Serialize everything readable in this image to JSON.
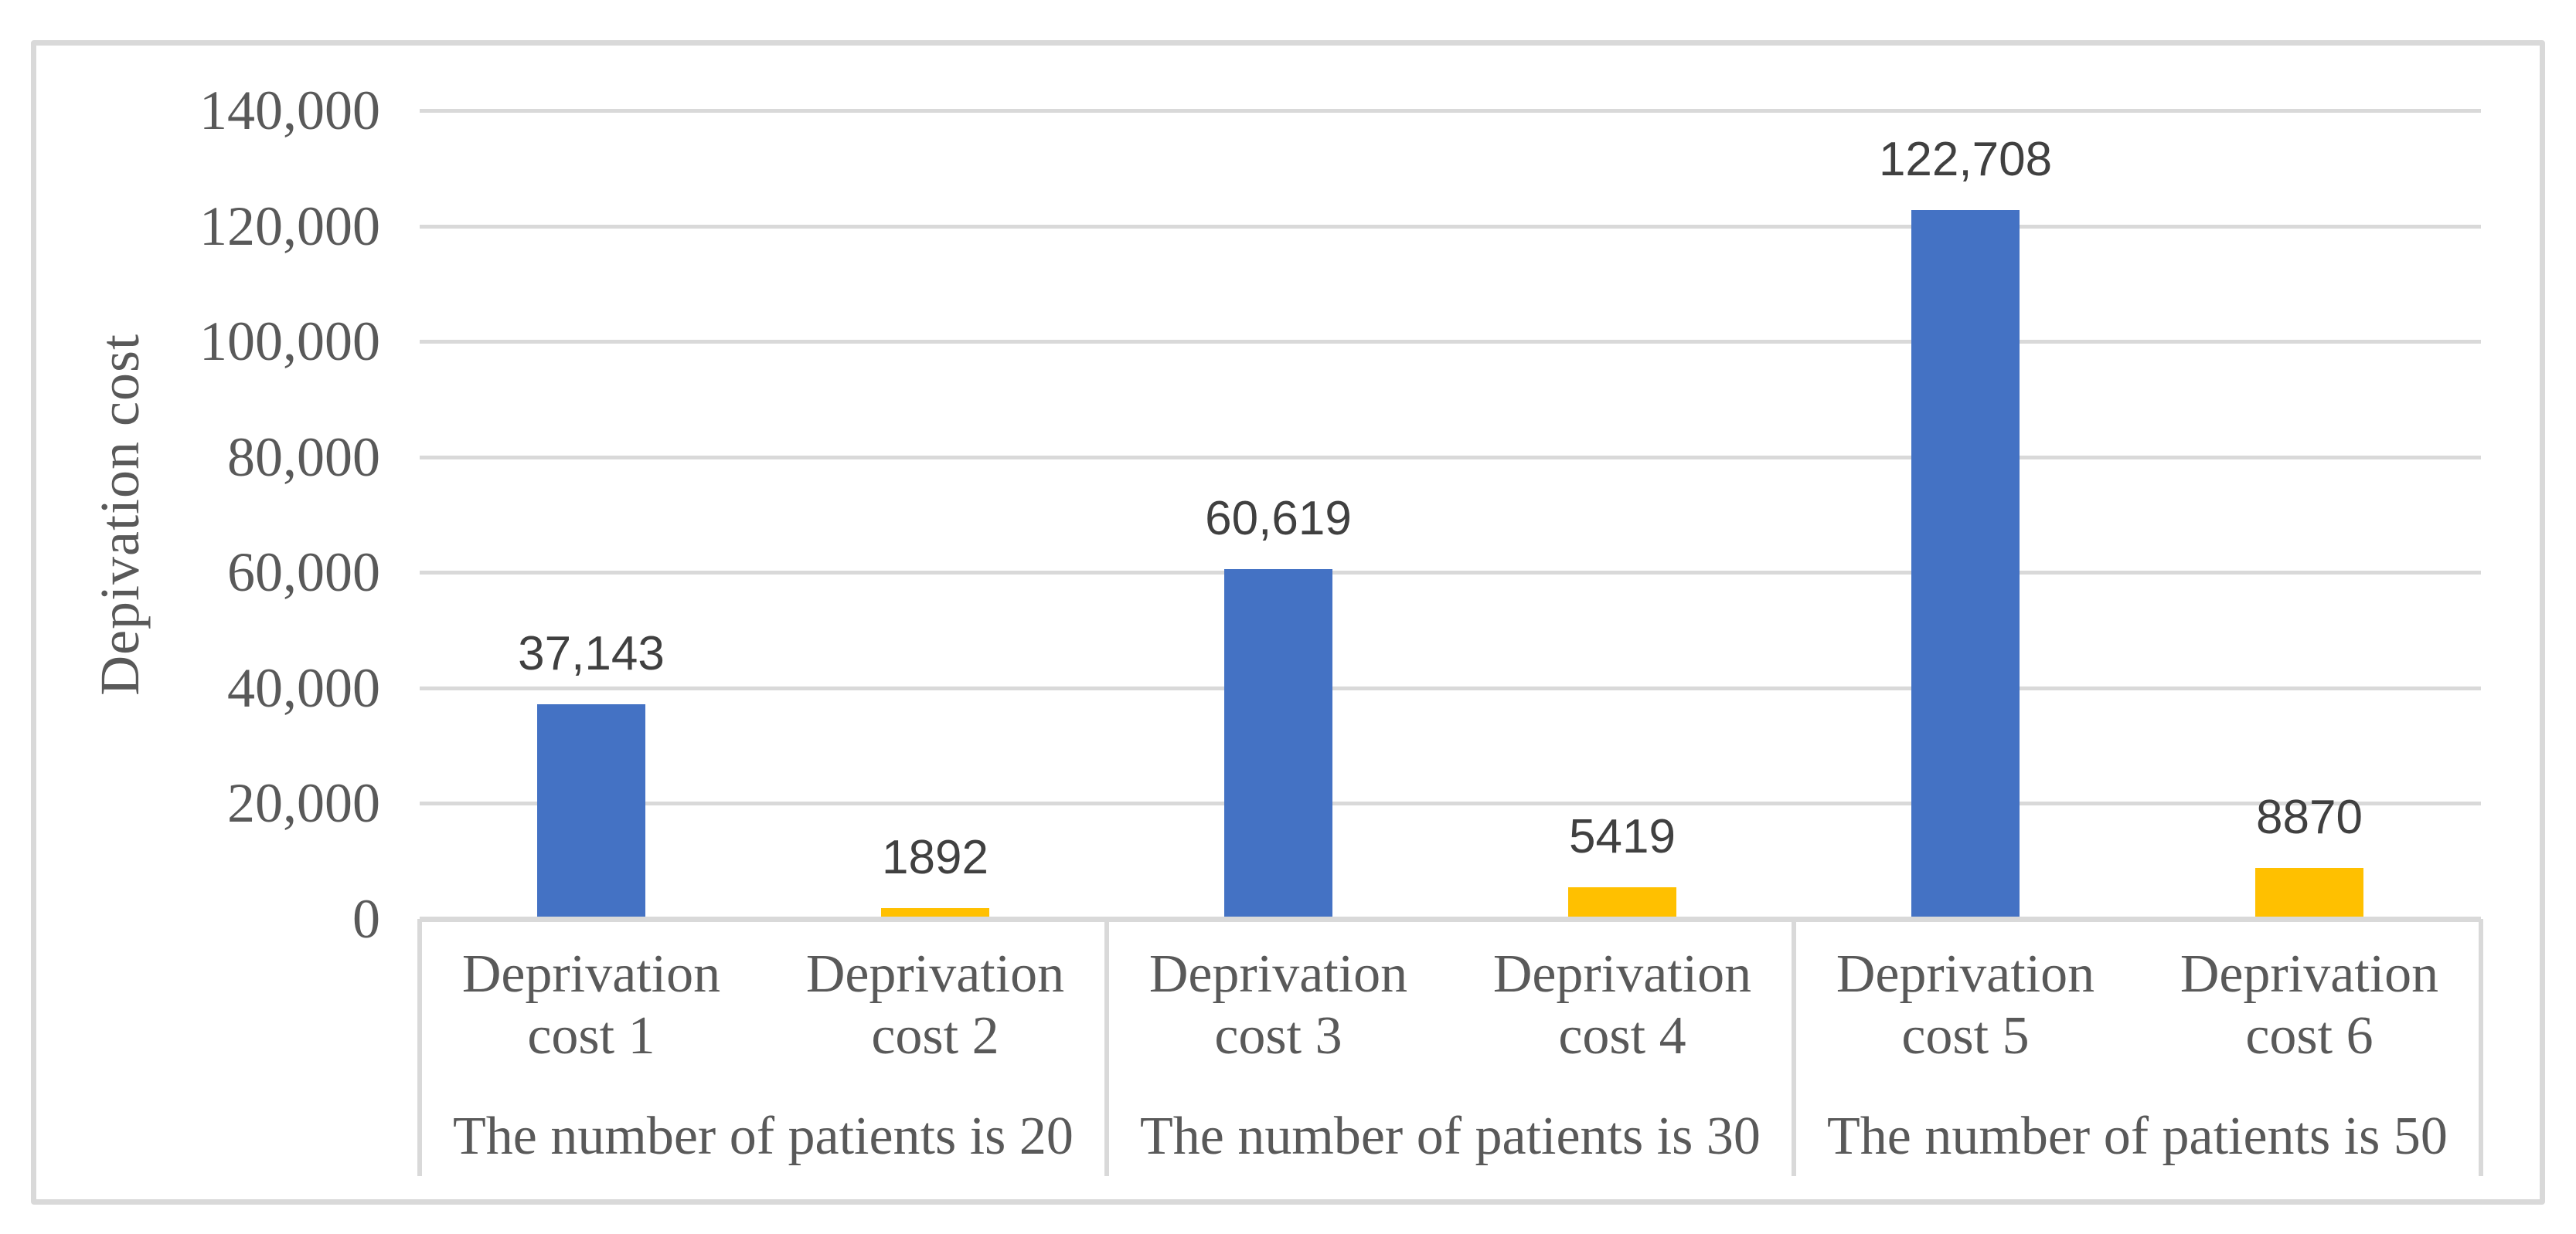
{
  "chart_data": {
    "type": "bar",
    "title": "",
    "xlabel": "",
    "ylabel": "Depivation cost",
    "ylim": [
      0,
      140000
    ],
    "ytick_step": 20000,
    "yticks_top_to_bottom": [
      "140,000",
      "120,000",
      "100,000",
      "80,000",
      "60,000",
      "40,000",
      "20,000",
      "0"
    ],
    "grid": true,
    "legend_position": "none",
    "groups": [
      {
        "label": "The number of patients is 20",
        "bars": [
          {
            "category": "Deprivation cost 1",
            "value": 37143,
            "value_label": "37,143",
            "color": "#4472C4"
          },
          {
            "category": "Deprivation cost 2",
            "value": 1892,
            "value_label": "1892",
            "color": "#FFC000"
          }
        ]
      },
      {
        "label": "The number of patients is 30",
        "bars": [
          {
            "category": "Deprivation cost 3",
            "value": 60619,
            "value_label": "60,619",
            "color": "#4472C4"
          },
          {
            "category": "Deprivation cost 4",
            "value": 5419,
            "value_label": "5419",
            "color": "#FFC000"
          }
        ]
      },
      {
        "label": "The number of patients is 50",
        "bars": [
          {
            "category": "Deprivation cost 5",
            "value": 122708,
            "value_label": "122,708",
            "color": "#4472C4"
          },
          {
            "category": "Deprivation cost 6",
            "value": 8870,
            "value_label": "8870",
            "color": "#FFC000"
          }
        ]
      }
    ],
    "colors": {
      "bar_blue": "#4472C4",
      "bar_yellow": "#FFC000",
      "gridline": "#D9D9D9",
      "axis_line": "#D9D9D9",
      "frame_border": "#D9D9D9",
      "axis_text": "#595959",
      "data_label_text": "#404040",
      "background": "#FFFFFF"
    }
  }
}
